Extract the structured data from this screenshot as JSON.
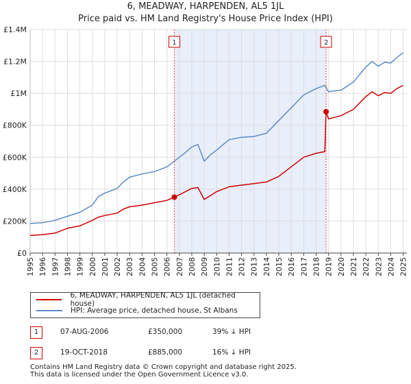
{
  "title_line1": "6, MEADWAY, HARPENDEN, AL5 1JL",
  "title_line2": "Price paid vs. HM Land Registry's House Price Index (HPI)",
  "colors": {
    "price_paid": "#cc0000",
    "hpi": "#5b8ac6",
    "shade": "#e8eefa"
  },
  "legend": {
    "price_paid_label": "6, MEADWAY, HARPENDEN, AL5 1JL (detached house)",
    "hpi_label": "HPI: Average price, detached house, St Albans"
  },
  "sales": [
    {
      "num": "1",
      "date": "07-AUG-2006",
      "price": "£350,000",
      "hpi_diff": "39% ↓ HPI"
    },
    {
      "num": "2",
      "date": "19-OCT-2018",
      "price": "£885,000",
      "hpi_diff": "16% ↓ HPI"
    }
  ],
  "footer_line1": "Contains HM Land Registry data © Crown copyright and database right 2025.",
  "footer_line2": "This data is licensed under the Open Government Licence v3.0.",
  "chart_data": {
    "type": "line",
    "xlim": [
      1995,
      2025.3
    ],
    "ylim": [
      0,
      1400000
    ],
    "y_ticks": [
      0,
      200000,
      400000,
      600000,
      800000,
      1000000,
      1200000,
      1400000
    ],
    "y_tick_labels": [
      "£0",
      "£200K",
      "£400K",
      "£600K",
      "£800K",
      "£1M",
      "£1.2M",
      "£1.4M"
    ],
    "x_ticks": [
      "1995",
      "1996",
      "1997",
      "1998",
      "1999",
      "2000",
      "2001",
      "2002",
      "2003",
      "2004",
      "2005",
      "2006",
      "2007",
      "2008",
      "2009",
      "2010",
      "2011",
      "2012",
      "2013",
      "2014",
      "2015",
      "2016",
      "2017",
      "2018",
      "2019",
      "2020",
      "2021",
      "2022",
      "2023",
      "2024",
      "2025"
    ],
    "shaded_range": [
      2006.6,
      2018.8
    ],
    "markers": [
      {
        "label": "1",
        "x": 2006.6,
        "y": 350000
      },
      {
        "label": "2",
        "x": 2018.8,
        "y": 885000
      }
    ],
    "series": [
      {
        "name": "6, MEADWAY, HARPENDEN, AL5 1JL (detached house)",
        "x": [
          1995,
          1996,
          1997,
          1997.5,
          1998,
          1999,
          2000,
          2000.5,
          2001,
          2002,
          2002.5,
          2003,
          2004,
          2005,
          2006,
          2006.6,
          2007,
          2007.5,
          2008,
          2008.5,
          2009,
          2009.5,
          2010,
          2011,
          2012,
          2013,
          2014,
          2015,
          2016,
          2017,
          2018,
          2018.7,
          2018.8,
          2019,
          2020,
          2021,
          2022,
          2022.5,
          2023,
          2023.5,
          2024,
          2024.5,
          2025
        ],
        "y": [
          110000,
          115000,
          125000,
          140000,
          155000,
          170000,
          205000,
          225000,
          235000,
          250000,
          275000,
          290000,
          300000,
          315000,
          330000,
          350000,
          365000,
          385000,
          405000,
          410000,
          335000,
          360000,
          385000,
          415000,
          425000,
          435000,
          445000,
          480000,
          540000,
          600000,
          625000,
          635000,
          885000,
          840000,
          860000,
          900000,
          980000,
          1010000,
          985000,
          1005000,
          1000000,
          1030000,
          1050000
        ]
      },
      {
        "name": "HPI: Average price, detached house, St Albans",
        "x": [
          1995,
          1996,
          1997,
          1998,
          1999,
          2000,
          2000.5,
          2001,
          2002,
          2002.5,
          2003,
          2004,
          2005,
          2006,
          2006.6,
          2007,
          2007.5,
          2008,
          2008.5,
          2009,
          2009.5,
          2010,
          2011,
          2012,
          2013,
          2014,
          2015,
          2016,
          2017,
          2018,
          2018.7,
          2019,
          2020,
          2021,
          2022,
          2022.5,
          2023,
          2023.5,
          2024,
          2024.5,
          2025
        ],
        "y": [
          185000,
          190000,
          205000,
          230000,
          255000,
          300000,
          355000,
          375000,
          405000,
          445000,
          475000,
          495000,
          510000,
          540000,
          575000,
          600000,
          630000,
          665000,
          680000,
          575000,
          615000,
          645000,
          710000,
          725000,
          730000,
          750000,
          830000,
          910000,
          990000,
          1030000,
          1050000,
          1010000,
          1020000,
          1070000,
          1165000,
          1200000,
          1170000,
          1195000,
          1190000,
          1225000,
          1255000
        ]
      }
    ]
  }
}
